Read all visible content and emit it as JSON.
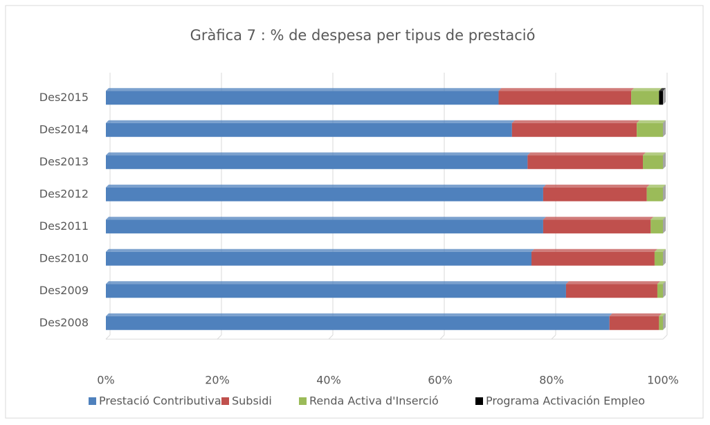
{
  "chart_data": {
    "type": "stacked_bar_horizontal",
    "title": "Gràfica 7 : % de despesa per tipus de prestació",
    "categories": [
      "Des2008",
      "Des2009",
      "Des2010",
      "Des2011",
      "Des2012",
      "Des2013",
      "Des2014",
      "Des2015"
    ],
    "series": [
      {
        "name": "Prestació Contributiva",
        "color": "#4f81bd",
        "values": [
          90.4,
          82.6,
          76.4,
          78.5,
          78.5,
          75.7,
          72.9,
          70.5
        ]
      },
      {
        "name": "Subsidi",
        "color": "#c0504d",
        "values": [
          8.9,
          16.4,
          22.1,
          19.3,
          18.6,
          20.7,
          22.4,
          23.8
        ]
      },
      {
        "name": "Renda Activa d'Inserció",
        "color": "#9bbb59",
        "values": [
          0.7,
          1.0,
          1.5,
          2.2,
          2.9,
          3.6,
          4.7,
          5.0
        ]
      },
      {
        "name": "Programa Activación Empleo",
        "color": "#000000",
        "values": [
          0,
          0,
          0,
          0,
          0,
          0,
          0,
          0.7
        ]
      }
    ],
    "xlim": [
      0,
      100
    ],
    "xticks": [
      {
        "value": 0,
        "label": "0%"
      },
      {
        "value": 20,
        "label": "20%"
      },
      {
        "value": 40,
        "label": "40%"
      },
      {
        "value": 60,
        "label": "60%"
      },
      {
        "value": 80,
        "label": "80%"
      },
      {
        "value": 100,
        "label": "100%"
      }
    ],
    "grid": true,
    "legend": "bottom"
  }
}
